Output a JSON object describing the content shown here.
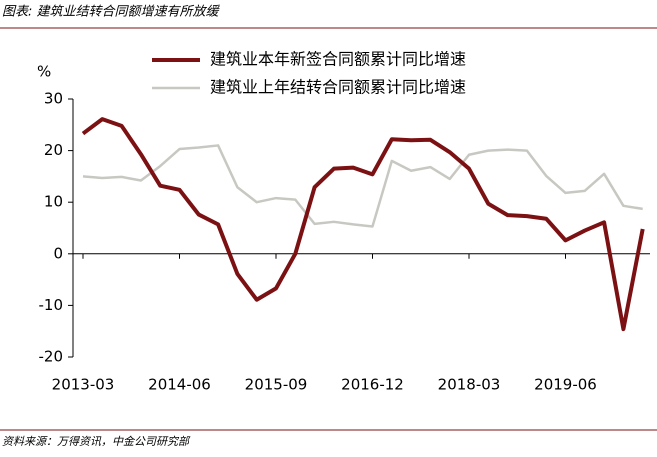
{
  "header": {
    "title": "图表: 建筑业结转合同额增速有所放缓"
  },
  "chart_data": {
    "type": "line",
    "y_unit": "%",
    "categories": [
      "2013-03",
      null,
      null,
      null,
      null,
      "2014-06",
      null,
      null,
      null,
      null,
      "2015-09",
      null,
      null,
      null,
      null,
      "2016-12",
      null,
      null,
      null,
      null,
      "2018-03",
      null,
      null,
      null,
      null,
      "2019-06",
      null,
      null,
      null,
      null
    ],
    "series": [
      {
        "name": "建筑业本年新签合同额累计同比增速",
        "color": "#7b1113",
        "values": [
          23.3,
          26.1,
          24.8,
          19.3,
          13.2,
          12.4,
          7.6,
          5.7,
          -3.9,
          -8.9,
          -6.7,
          0,
          12.9,
          16.5,
          16.7,
          15.4,
          22.2,
          22.0,
          22.1,
          19.7,
          16.5,
          9.7,
          7.5,
          7.3,
          6.8,
          2.6,
          4.5,
          6.1,
          -14.6,
          4.8
        ]
      },
      {
        "name": "建筑业上年结转合同额累计同比增速",
        "color": "#c8c8c2",
        "values": [
          15.0,
          14.7,
          14.9,
          14.2,
          17.0,
          20.3,
          20.6,
          21.0,
          12.9,
          10.0,
          10.8,
          10.5,
          5.8,
          6.2,
          5.7,
          5.3,
          18.0,
          16.1,
          16.8,
          14.5,
          19.2,
          20.0,
          20.2,
          20.0,
          15.1,
          11.8,
          12.2,
          15.5,
          9.3,
          8.7
        ]
      }
    ],
    "ylim": [
      -20,
      30
    ],
    "yticks": [
      -20,
      -10,
      0,
      10,
      20,
      30
    ],
    "grid": false
  },
  "footer": {
    "source": "资料来源：万得资讯，中金公司研究部"
  }
}
